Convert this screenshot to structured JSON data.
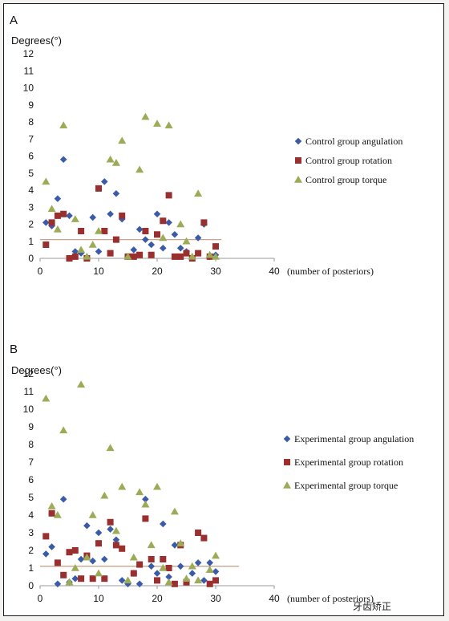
{
  "chart_data": [
    {
      "panel": "A",
      "type": "scatter",
      "ylabel": "Degrees(°)",
      "xlabel": "(number of posteriors)",
      "xlim": [
        0,
        40
      ],
      "ylim": [
        0,
        12
      ],
      "xticks": [
        0,
        10,
        20,
        30,
        40
      ],
      "yticks": [
        0,
        1,
        2,
        3,
        4,
        5,
        6,
        7,
        8,
        9,
        10,
        11,
        12
      ],
      "legend_position": "right",
      "reference_line": {
        "y": 1.1,
        "x": [
          0,
          31
        ],
        "color": "#c8a48c"
      },
      "series": [
        {
          "name": "Control group angulation",
          "marker": "diamond",
          "color": "#3a5ba8",
          "points": [
            [
              1,
              2.1
            ],
            [
              2,
              1.9
            ],
            [
              3,
              3.5
            ],
            [
              4,
              5.8
            ],
            [
              5,
              2.5
            ],
            [
              6,
              0.4
            ],
            [
              7,
              0.3
            ],
            [
              9,
              2.4
            ],
            [
              10,
              0.4
            ],
            [
              11,
              4.5
            ],
            [
              12,
              2.6
            ],
            [
              13,
              3.8
            ],
            [
              14,
              2.3
            ],
            [
              15,
              0.1
            ],
            [
              16,
              0.5
            ],
            [
              17,
              1.7
            ],
            [
              18,
              1.1
            ],
            [
              19,
              0.8
            ],
            [
              20,
              2.6
            ],
            [
              21,
              0.6
            ],
            [
              22,
              2.1
            ],
            [
              23,
              1.4
            ],
            [
              24,
              0.6
            ],
            [
              25,
              0.4
            ],
            [
              27,
              1.2
            ],
            [
              28,
              2.0
            ],
            [
              29,
              0.1
            ],
            [
              30,
              0.2
            ]
          ]
        },
        {
          "name": "Control group rotation",
          "marker": "square",
          "color": "#9a2f2f",
          "points": [
            [
              1,
              0.8
            ],
            [
              2,
              2.1
            ],
            [
              3,
              2.5
            ],
            [
              4,
              2.6
            ],
            [
              5,
              0.0
            ],
            [
              6,
              0.1
            ],
            [
              7,
              1.6
            ],
            [
              8,
              0.0
            ],
            [
              10,
              4.1
            ],
            [
              11,
              1.6
            ],
            [
              12,
              0.3
            ],
            [
              13,
              1.1
            ],
            [
              14,
              2.5
            ],
            [
              15,
              0.1
            ],
            [
              16,
              0.1
            ],
            [
              17,
              0.2
            ],
            [
              18,
              1.6
            ],
            [
              19,
              0.2
            ],
            [
              20,
              1.4
            ],
            [
              21,
              2.2
            ],
            [
              22,
              3.7
            ],
            [
              23,
              0.1
            ],
            [
              24,
              0.1
            ],
            [
              25,
              0.3
            ],
            [
              26,
              0.0
            ],
            [
              27,
              0.3
            ],
            [
              28,
              2.1
            ],
            [
              29,
              0.1
            ],
            [
              30,
              0.7
            ]
          ]
        },
        {
          "name": "Control group torque",
          "marker": "triangle",
          "color": "#9bab56",
          "points": [
            [
              1,
              4.5
            ],
            [
              2,
              2.9
            ],
            [
              3,
              1.7
            ],
            [
              4,
              7.8
            ],
            [
              6,
              2.3
            ],
            [
              7,
              0.5
            ],
            [
              8,
              0.1
            ],
            [
              9,
              0.8
            ],
            [
              10,
              1.6
            ],
            [
              12,
              5.8
            ],
            [
              13,
              5.6
            ],
            [
              14,
              6.9
            ],
            [
              15,
              0.1
            ],
            [
              17,
              5.2
            ],
            [
              18,
              8.3
            ],
            [
              20,
              7.9
            ],
            [
              21,
              1.2
            ],
            [
              22,
              7.8
            ],
            [
              24,
              2.0
            ],
            [
              25,
              1.0
            ],
            [
              26,
              0.1
            ],
            [
              27,
              3.8
            ],
            [
              29,
              0.2
            ],
            [
              30,
              0.1
            ]
          ]
        }
      ]
    },
    {
      "panel": "B",
      "type": "scatter",
      "ylabel": "Degrees(°)",
      "xlabel": "(number of posteriors)",
      "xlim": [
        0,
        40
      ],
      "ylim": [
        0,
        12
      ],
      "xticks": [
        0,
        10,
        20,
        30,
        40
      ],
      "yticks": [
        0,
        1,
        2,
        3,
        4,
        5,
        6,
        7,
        8,
        9,
        10,
        11,
        12
      ],
      "legend_position": "right",
      "reference_line": {
        "y": 1.1,
        "x": [
          0,
          34
        ],
        "color": "#c8a48c"
      },
      "series": [
        {
          "name": "Experimental group angulation",
          "marker": "diamond",
          "color": "#3a5ba8",
          "points": [
            [
              1,
              1.8
            ],
            [
              2,
              2.2
            ],
            [
              3,
              0.1
            ],
            [
              4,
              4.9
            ],
            [
              5,
              0.2
            ],
            [
              6,
              0.4
            ],
            [
              7,
              1.5
            ],
            [
              8,
              3.4
            ],
            [
              9,
              1.4
            ],
            [
              10,
              3.0
            ],
            [
              11,
              1.5
            ],
            [
              12,
              3.2
            ],
            [
              13,
              2.6
            ],
            [
              14,
              0.3
            ],
            [
              15,
              0.1
            ],
            [
              16,
              0.7
            ],
            [
              17,
              0.1
            ],
            [
              18,
              4.9
            ],
            [
              19,
              1.1
            ],
            [
              20,
              0.7
            ],
            [
              21,
              3.5
            ],
            [
              22,
              0.5
            ],
            [
              23,
              2.3
            ],
            [
              24,
              1.1
            ],
            [
              25,
              0.3
            ],
            [
              26,
              0.7
            ],
            [
              27,
              1.3
            ],
            [
              28,
              0.3
            ],
            [
              29,
              1.3
            ],
            [
              30,
              0.8
            ]
          ]
        },
        {
          "name": "Experimental group rotation",
          "marker": "square",
          "color": "#9a2f2f",
          "points": [
            [
              1,
              2.8
            ],
            [
              2,
              4.1
            ],
            [
              3,
              1.3
            ],
            [
              4,
              0.6
            ],
            [
              5,
              1.9
            ],
            [
              6,
              2.0
            ],
            [
              7,
              0.4
            ],
            [
              8,
              1.7
            ],
            [
              9,
              0.4
            ],
            [
              10,
              2.4
            ],
            [
              11,
              0.4
            ],
            [
              12,
              3.6
            ],
            [
              13,
              2.3
            ],
            [
              14,
              2.1
            ],
            [
              16,
              0.7
            ],
            [
              17,
              1.2
            ],
            [
              18,
              3.8
            ],
            [
              19,
              1.5
            ],
            [
              20,
              0.3
            ],
            [
              21,
              1.5
            ],
            [
              22,
              1.0
            ],
            [
              23,
              0.1
            ],
            [
              24,
              2.3
            ],
            [
              25,
              0.2
            ],
            [
              27,
              3.0
            ],
            [
              28,
              2.7
            ],
            [
              29,
              0.1
            ],
            [
              30,
              0.3
            ]
          ]
        },
        {
          "name": "Experimental group torque",
          "marker": "triangle",
          "color": "#9bab56",
          "points": [
            [
              1,
              10.6
            ],
            [
              2,
              4.5
            ],
            [
              3,
              4.0
            ],
            [
              4,
              8.8
            ],
            [
              5,
              0.2
            ],
            [
              6,
              1.0
            ],
            [
              7,
              11.4
            ],
            [
              8,
              1.6
            ],
            [
              9,
              4.0
            ],
            [
              10,
              0.7
            ],
            [
              11,
              5.1
            ],
            [
              12,
              7.8
            ],
            [
              13,
              3.1
            ],
            [
              14,
              5.6
            ],
            [
              15,
              0.3
            ],
            [
              16,
              1.6
            ],
            [
              17,
              5.3
            ],
            [
              18,
              4.6
            ],
            [
              19,
              2.3
            ],
            [
              20,
              5.6
            ],
            [
              21,
              1.0
            ],
            [
              22,
              0.2
            ],
            [
              23,
              4.2
            ],
            [
              24,
              2.4
            ],
            [
              25,
              0.4
            ],
            [
              26,
              1.1
            ],
            [
              27,
              0.3
            ],
            [
              29,
              0.9
            ],
            [
              30,
              1.7
            ]
          ]
        }
      ]
    }
  ],
  "watermark": "牙齿矫正"
}
